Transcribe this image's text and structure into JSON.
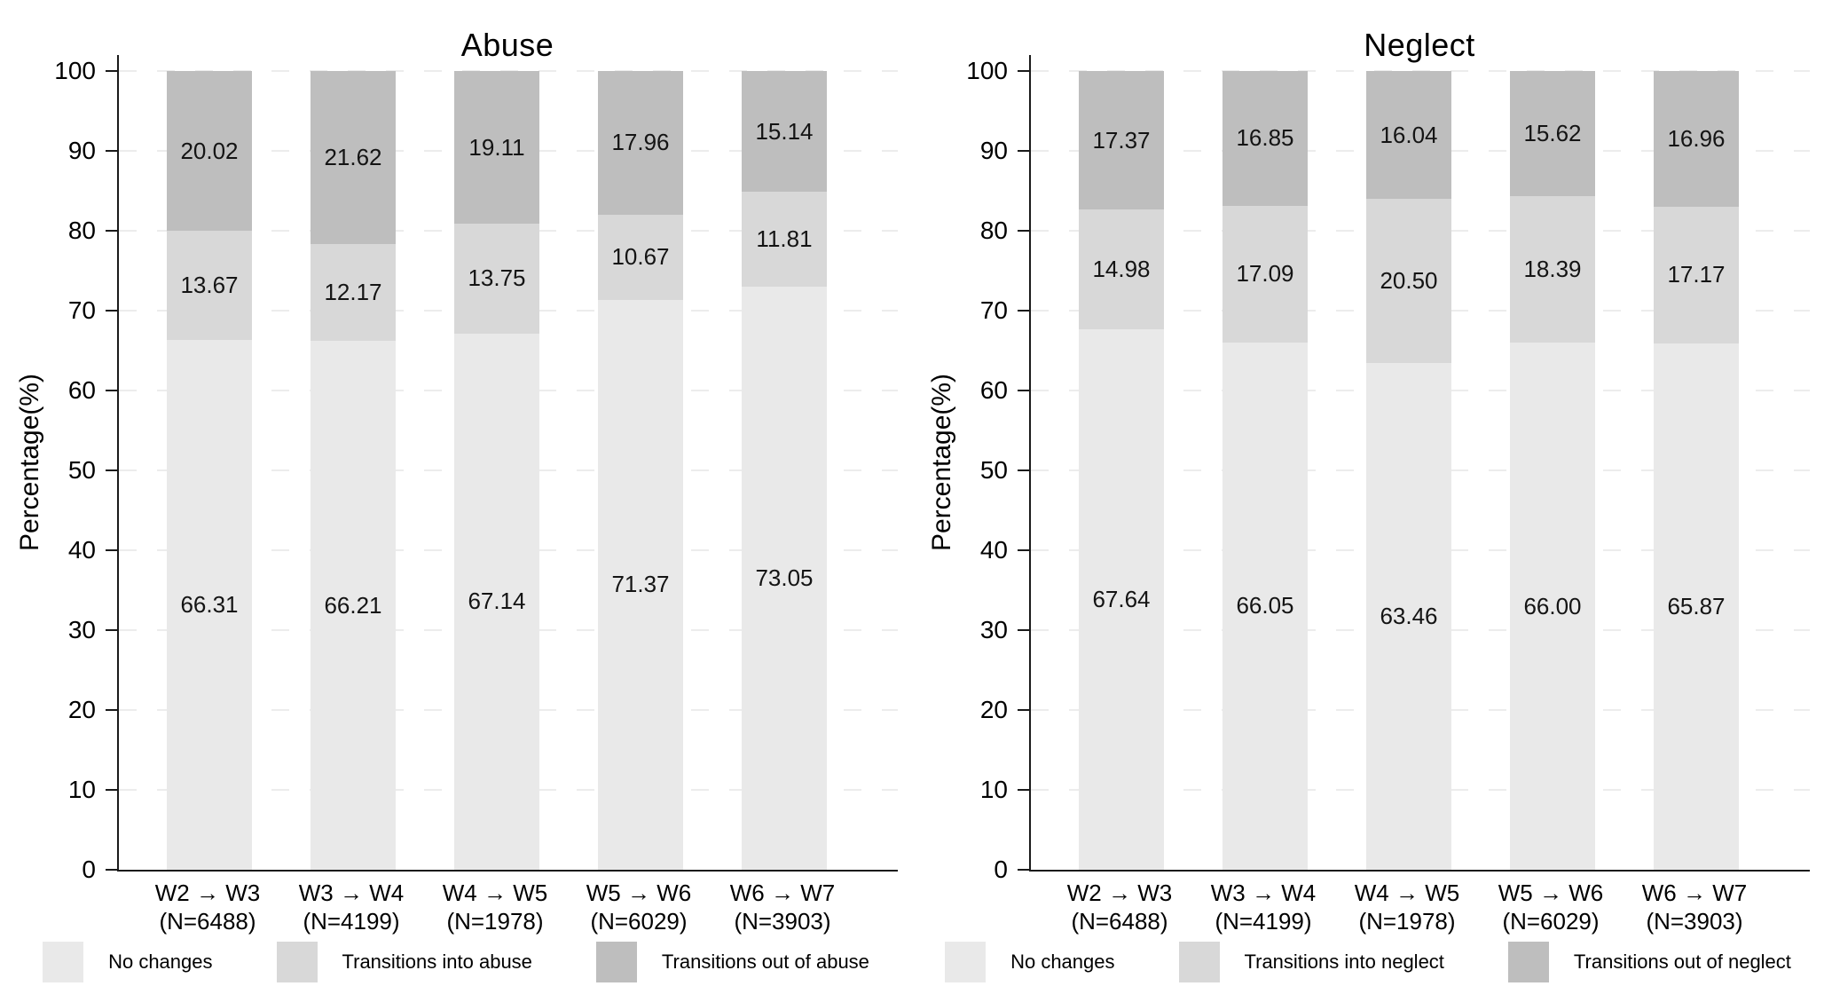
{
  "figure": {
    "background": "#ffffff",
    "axis_color": "#1a1a1a",
    "grid_color": "#ececec",
    "value_label_color": "#141414"
  },
  "chart_data": {
    "type": "bar",
    "subtype": "stacked-percentage",
    "ylabel": "Percentage(%)",
    "ylim": [
      0,
      100
    ],
    "yticks": [
      0,
      10,
      20,
      30,
      40,
      50,
      60,
      70,
      80,
      90,
      100
    ],
    "grid": "horizontal-dashed",
    "legend_position": "bottom",
    "categories": [
      "W2 → W3",
      "W3 → W4",
      "W4 → W5",
      "W5 → W6",
      "W6 → W7"
    ],
    "category_sublabels": [
      "(N=6488)",
      "(N=4199)",
      "(N=1978)",
      "(N=6029)",
      "(N=3903)"
    ],
    "charts": [
      {
        "title": "Abuse",
        "series": [
          {
            "name": "No changes",
            "color": "#e9e9e9",
            "values": [
              66.31,
              66.21,
              67.14,
              71.37,
              73.05
            ],
            "labels": [
              "66.31",
              "66.21",
              "67.14",
              "71.37",
              "73.05"
            ]
          },
          {
            "name": "Transitions into abuse",
            "color": "#d8d8d8",
            "values": [
              13.67,
              12.17,
              13.75,
              10.67,
              11.81
            ],
            "labels": [
              "13.67",
              "12.17",
              "13.75",
              "10.67",
              "11.81"
            ]
          },
          {
            "name": "Transitions out of abuse",
            "color": "#bebebe",
            "values": [
              20.02,
              21.62,
              19.11,
              17.96,
              15.14
            ],
            "labels": [
              "20.02",
              "21.62",
              "19.11",
              "17.96",
              "15.14"
            ]
          }
        ]
      },
      {
        "title": "Neglect",
        "series": [
          {
            "name": "No changes",
            "color": "#e9e9e9",
            "values": [
              67.64,
              66.05,
              63.46,
              66.0,
              65.87
            ],
            "labels": [
              "67.64",
              "66.05",
              "63.46",
              "66.00",
              "65.87"
            ]
          },
          {
            "name": "Transitions into neglect",
            "color": "#d8d8d8",
            "values": [
              14.98,
              17.09,
              20.5,
              18.39,
              17.17
            ],
            "labels": [
              "14.98",
              "17.09",
              "20.50",
              "18.39",
              "17.17"
            ]
          },
          {
            "name": "Transitions out of neglect",
            "color": "#bebebe",
            "values": [
              17.37,
              16.85,
              16.04,
              15.62,
              16.96
            ],
            "labels": [
              "17.37",
              "16.85",
              "16.04",
              "15.62",
              "16.96"
            ]
          }
        ]
      }
    ]
  }
}
